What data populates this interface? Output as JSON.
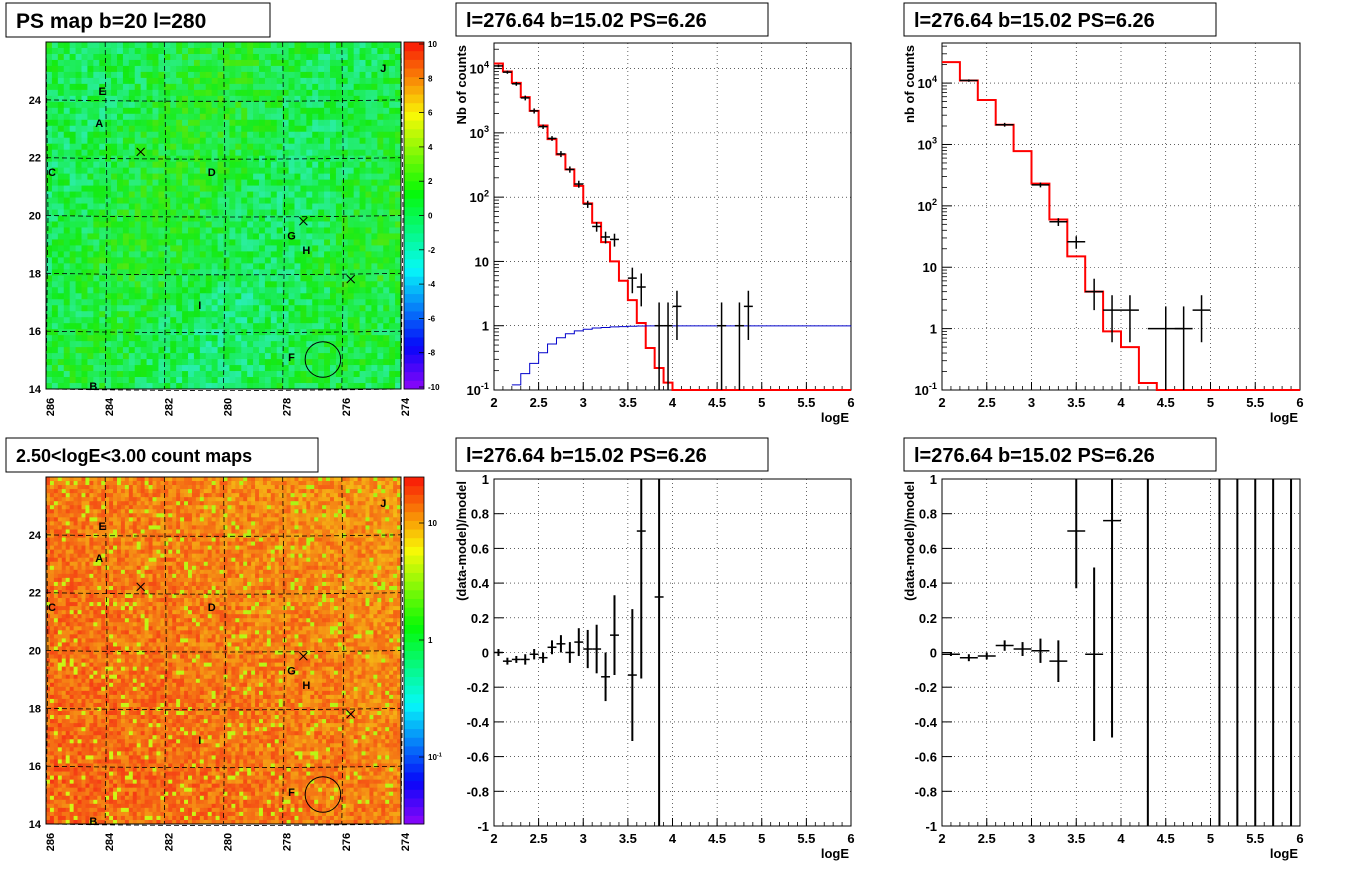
{
  "colors": {
    "model": "#ff0000",
    "data": "#000000",
    "efficiency": "#0000cc",
    "grid": "#000000",
    "frame": "#000000"
  },
  "panels": {
    "map_top": {
      "title": "PS map b=20 l=280",
      "x_ticks": [
        "286",
        "284",
        "282",
        "280",
        "278",
        "276",
        "274"
      ],
      "y_ticks": [
        "14",
        "16",
        "18",
        "20",
        "22",
        "24"
      ],
      "colorbar_ticks": [
        "10",
        "8",
        "6",
        "4",
        "2",
        "0",
        "-2",
        "-4",
        "-6",
        "-8",
        "-10"
      ],
      "labels": [
        {
          "text": "J",
          "l": 274.6,
          "b": 25.1
        },
        {
          "text": "E",
          "l": 284.1,
          "b": 24.3
        },
        {
          "text": "A",
          "l": 284.2,
          "b": 23.2
        },
        {
          "text": "C",
          "l": 285.8,
          "b": 21.5
        },
        {
          "text": "D",
          "l": 280.4,
          "b": 21.5
        },
        {
          "text": "G",
          "l": 277.7,
          "b": 19.3
        },
        {
          "text": "H",
          "l": 277.2,
          "b": 18.8
        },
        {
          "text": "I",
          "l": 280.8,
          "b": 16.9
        },
        {
          "text": "F",
          "l": 277.7,
          "b": 15.1
        },
        {
          "text": "B",
          "l": 284.4,
          "b": 14.1
        }
      ],
      "crosses": [
        {
          "l": 282.8,
          "b": 22.2
        },
        {
          "l": 277.3,
          "b": 19.8
        },
        {
          "l": 275.7,
          "b": 17.8
        }
      ],
      "circle": {
        "l": 276.64,
        "b": 15.02,
        "r": 0.6
      }
    },
    "map_bottom": {
      "title": "2.50<logE<3.00 count maps",
      "x_ticks": [
        "286",
        "284",
        "282",
        "280",
        "278",
        "276",
        "274"
      ],
      "y_ticks": [
        "14",
        "16",
        "18",
        "20",
        "22",
        "24"
      ],
      "colorbar_ticks": [
        "10",
        "1",
        "10-1"
      ]
    }
  },
  "chart_data": [
    {
      "type": "line",
      "title": "l=276.64 b=15.02 PS=6.26",
      "xlabel": "logE",
      "ylabel": "Nb of counts",
      "xlim": [
        2,
        6
      ],
      "ylim": [
        0.1,
        25000
      ],
      "yscale": "log",
      "grid": true,
      "x_ticks": [
        "2",
        "2.5",
        "3",
        "3.5",
        "4",
        "4.5",
        "5",
        "5.5",
        "6"
      ],
      "y_ticks": [
        "10-1",
        "1",
        "10",
        "102",
        "103",
        "104"
      ],
      "series": [
        {
          "role": "model",
          "kind": "step",
          "edges": [
            2.0,
            2.1,
            2.2,
            2.3,
            2.4,
            2.5,
            2.6,
            2.7,
            2.8,
            2.9,
            3.0,
            3.1,
            3.2,
            3.3,
            3.4,
            3.5,
            3.6,
            3.7,
            3.8,
            3.9,
            4.0,
            4.1,
            4.2,
            6.0
          ],
          "values": [
            12000,
            9000,
            6000,
            3600,
            2200,
            1300,
            800,
            460,
            270,
            150,
            80,
            40,
            20,
            10,
            5,
            2.5,
            1.1,
            0.45,
            0.22,
            0.13,
            0.1,
            0.1,
            0.1
          ]
        },
        {
          "role": "efficiency",
          "kind": "step",
          "edges": [
            2.2,
            2.3,
            2.4,
            2.5,
            2.6,
            2.7,
            2.8,
            2.9,
            3.0,
            3.1,
            3.2,
            3.3,
            3.4,
            3.5,
            3.6,
            3.7,
            6.0
          ],
          "values": [
            0.12,
            0.18,
            0.26,
            0.38,
            0.52,
            0.65,
            0.75,
            0.83,
            0.88,
            0.92,
            0.94,
            0.96,
            0.97,
            0.98,
            0.99,
            0.995,
            1.0
          ]
        },
        {
          "role": "data",
          "kind": "errorbar",
          "points": [
            {
              "x": 2.05,
              "y": 11000,
              "lo": 10500,
              "hi": 11500,
              "dx": 0.05
            },
            {
              "x": 2.15,
              "y": 8800,
              "lo": 8300,
              "hi": 9300,
              "dx": 0.05
            },
            {
              "x": 2.25,
              "y": 5800,
              "lo": 5400,
              "hi": 6200,
              "dx": 0.05
            },
            {
              "x": 2.35,
              "y": 3500,
              "lo": 3200,
              "hi": 3800,
              "dx": 0.05
            },
            {
              "x": 2.45,
              "y": 2200,
              "lo": 2000,
              "hi": 2400,
              "dx": 0.05
            },
            {
              "x": 2.55,
              "y": 1250,
              "lo": 1150,
              "hi": 1350,
              "dx": 0.05
            },
            {
              "x": 2.65,
              "y": 820,
              "lo": 750,
              "hi": 890,
              "dx": 0.05
            },
            {
              "x": 2.75,
              "y": 470,
              "lo": 420,
              "hi": 520,
              "dx": 0.05
            },
            {
              "x": 2.85,
              "y": 270,
              "lo": 240,
              "hi": 300,
              "dx": 0.05
            },
            {
              "x": 2.95,
              "y": 160,
              "lo": 140,
              "hi": 180,
              "dx": 0.05
            },
            {
              "x": 3.05,
              "y": 78,
              "lo": 68,
              "hi": 88,
              "dx": 0.05
            },
            {
              "x": 3.15,
              "y": 35,
              "lo": 29,
              "hi": 41,
              "dx": 0.05
            },
            {
              "x": 3.25,
              "y": 24,
              "lo": 19,
              "hi": 29,
              "dx": 0.05
            },
            {
              "x": 3.35,
              "y": 22,
              "lo": 17,
              "hi": 27,
              "dx": 0.05
            },
            {
              "x": 3.55,
              "y": 5.5,
              "lo": 3.2,
              "hi": 8,
              "dx": 0.05
            },
            {
              "x": 3.65,
              "y": 4,
              "lo": 2,
              "hi": 6.5,
              "dx": 0.05
            },
            {
              "x": 3.85,
              "y": 1,
              "lo": 0.1,
              "hi": 2.3,
              "dx": 0.05
            },
            {
              "x": 3.95,
              "y": 1,
              "lo": 0.1,
              "hi": 2.3,
              "dx": 0.05
            },
            {
              "x": 4.05,
              "y": 2,
              "lo": 0.6,
              "hi": 3.5,
              "dx": 0.05
            },
            {
              "x": 4.55,
              "y": 1,
              "lo": 0.1,
              "hi": 2.3,
              "dx": 0.05
            },
            {
              "x": 4.75,
              "y": 1,
              "lo": 0.1,
              "hi": 2.3,
              "dx": 0.05
            },
            {
              "x": 4.85,
              "y": 2,
              "lo": 0.6,
              "hi": 3.5,
              "dx": 0.05
            }
          ]
        }
      ]
    },
    {
      "type": "line",
      "title": "l=276.64 b=15.02 PS=6.26",
      "xlabel": "logE",
      "ylabel": "nb of counts",
      "xlim": [
        2,
        6
      ],
      "ylim": [
        0.1,
        45000
      ],
      "yscale": "log",
      "grid": true,
      "x_ticks": [
        "2",
        "2.5",
        "3",
        "3.5",
        "4",
        "4.5",
        "5",
        "5.5",
        "6"
      ],
      "y_ticks": [
        "10-1",
        "1",
        "10",
        "102",
        "103",
        "104"
      ],
      "series": [
        {
          "role": "model",
          "kind": "step",
          "edges": [
            2.0,
            2.2,
            2.4,
            2.6,
            2.8,
            3.0,
            3.2,
            3.4,
            3.6,
            3.8,
            4.0,
            4.2,
            4.4,
            6.0
          ],
          "values": [
            22000,
            11000,
            5300,
            2100,
            780,
            230,
            60,
            15,
            4,
            0.9,
            0.5,
            0.13,
            0.1
          ]
        },
        {
          "role": "data",
          "kind": "errorbar",
          "points": [
            {
              "x": 2.3,
              "y": 11000,
              "lo": 10500,
              "hi": 11500,
              "dx": 0.1
            },
            {
              "x": 2.7,
              "y": 2100,
              "lo": 1950,
              "hi": 2250,
              "dx": 0.1
            },
            {
              "x": 3.1,
              "y": 220,
              "lo": 200,
              "hi": 240,
              "dx": 0.1
            },
            {
              "x": 3.3,
              "y": 55,
              "lo": 47,
              "hi": 63,
              "dx": 0.1
            },
            {
              "x": 3.5,
              "y": 26,
              "lo": 20,
              "hi": 32,
              "dx": 0.1
            },
            {
              "x": 3.7,
              "y": 4,
              "lo": 2,
              "hi": 6.5,
              "dx": 0.1
            },
            {
              "x": 3.9,
              "y": 2,
              "lo": 0.6,
              "hi": 3.5,
              "dx": 0.1
            },
            {
              "x": 4.1,
              "y": 2,
              "lo": 0.6,
              "hi": 3.5,
              "dx": 0.1
            },
            {
              "x": 4.5,
              "y": 1,
              "lo": 0.1,
              "hi": 2.3,
              "dx": 0.2
            },
            {
              "x": 4.7,
              "y": 1,
              "lo": 0.1,
              "hi": 2.3,
              "dx": 0.1
            },
            {
              "x": 4.9,
              "y": 2,
              "lo": 0.6,
              "hi": 3.5,
              "dx": 0.1
            }
          ]
        }
      ]
    },
    {
      "type": "scatter",
      "title": "l=276.64 b=15.02 PS=6.26",
      "xlabel": "logE",
      "ylabel": "(data-model)/model",
      "xlim": [
        2,
        6
      ],
      "ylim": [
        -1,
        1
      ],
      "grid": true,
      "x_ticks": [
        "2",
        "2.5",
        "3",
        "3.5",
        "4",
        "4.5",
        "5",
        "5.5",
        "6"
      ],
      "y_ticks": [
        "-1",
        "-0.8",
        "-0.6",
        "-0.4",
        "-0.2",
        "0",
        "0.2",
        "0.4",
        "0.6",
        "0.8",
        "1"
      ],
      "points": [
        {
          "x": 2.05,
          "y": 0.0,
          "err": 0.02,
          "dx": 0.05
        },
        {
          "x": 2.15,
          "y": -0.05,
          "err": 0.02,
          "dx": 0.05
        },
        {
          "x": 2.25,
          "y": -0.04,
          "err": 0.02,
          "dx": 0.05
        },
        {
          "x": 2.35,
          "y": -0.04,
          "err": 0.03,
          "dx": 0.05
        },
        {
          "x": 2.45,
          "y": -0.01,
          "err": 0.03,
          "dx": 0.05
        },
        {
          "x": 2.55,
          "y": -0.03,
          "err": 0.03,
          "dx": 0.05
        },
        {
          "x": 2.65,
          "y": 0.03,
          "err": 0.04,
          "dx": 0.05
        },
        {
          "x": 2.75,
          "y": 0.05,
          "err": 0.05,
          "dx": 0.05
        },
        {
          "x": 2.85,
          "y": 0.0,
          "err": 0.06,
          "dx": 0.05
        },
        {
          "x": 2.95,
          "y": 0.06,
          "err": 0.08,
          "dx": 0.05
        },
        {
          "x": 3.05,
          "y": 0.02,
          "err": 0.11,
          "dx": 0.05
        },
        {
          "x": 3.15,
          "y": 0.02,
          "err": 0.14,
          "dx": 0.05
        },
        {
          "x": 3.25,
          "y": -0.14,
          "err": 0.14,
          "dx": 0.05
        },
        {
          "x": 3.35,
          "y": 0.1,
          "err": 0.23,
          "dx": 0.05
        },
        {
          "x": 3.55,
          "y": -0.13,
          "err": 0.38,
          "dx": 0.05
        },
        {
          "x": 3.65,
          "y": 0.7,
          "err": 0.85,
          "dx": 0.05
        },
        {
          "x": 3.85,
          "y": 0.32,
          "err": 1.4,
          "dx": 0.05
        }
      ]
    },
    {
      "type": "scatter",
      "title": "l=276.64 b=15.02 PS=6.26",
      "xlabel": "logE",
      "ylabel": "(data-model)/model",
      "xlim": [
        2,
        6
      ],
      "ylim": [
        -1,
        1
      ],
      "grid": true,
      "x_ticks": [
        "2",
        "2.5",
        "3",
        "3.5",
        "4",
        "4.5",
        "5",
        "5.5",
        "6"
      ],
      "y_ticks": [
        "-1",
        "-0.8",
        "-0.6",
        "-0.4",
        "-0.2",
        "0",
        "0.2",
        "0.4",
        "0.6",
        "0.8",
        "1"
      ],
      "points": [
        {
          "x": 2.1,
          "y": -0.01,
          "err": 0.01,
          "dx": 0.1
        },
        {
          "x": 2.3,
          "y": -0.03,
          "err": 0.02,
          "dx": 0.1
        },
        {
          "x": 2.5,
          "y": -0.02,
          "err": 0.02,
          "dx": 0.1
        },
        {
          "x": 2.7,
          "y": 0.04,
          "err": 0.03,
          "dx": 0.1
        },
        {
          "x": 2.9,
          "y": 0.02,
          "err": 0.04,
          "dx": 0.1
        },
        {
          "x": 3.1,
          "y": 0.01,
          "err": 0.07,
          "dx": 0.1
        },
        {
          "x": 3.3,
          "y": -0.05,
          "err": 0.12,
          "dx": 0.1
        },
        {
          "x": 3.5,
          "y": 0.7,
          "err": 0.33,
          "dx": 0.1
        },
        {
          "x": 3.7,
          "y": -0.01,
          "err": 0.5,
          "dx": 0.1
        },
        {
          "x": 3.9,
          "y": 0.76,
          "err": 1.25,
          "dx": 0.1
        },
        {
          "x": 4.3,
          "y": 0.0,
          "err": 2.0,
          "dx": 0.0
        },
        {
          "x": 5.1,
          "y": 0.0,
          "err": 2.0,
          "dx": 0.0
        },
        {
          "x": 5.3,
          "y": 0.0,
          "err": 2.0,
          "dx": 0.0
        },
        {
          "x": 5.5,
          "y": 0.0,
          "err": 2.0,
          "dx": 0.0
        },
        {
          "x": 5.7,
          "y": 0.0,
          "err": 2.0,
          "dx": 0.0
        },
        {
          "x": 5.9,
          "y": 0.0,
          "err": 2.0,
          "dx": 0.0
        }
      ]
    }
  ]
}
